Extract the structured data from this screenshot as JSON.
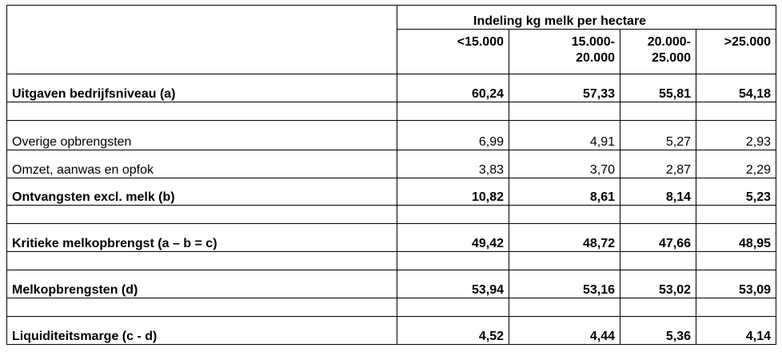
{
  "header": {
    "group_title": "Indeling kg melk per hectare",
    "columns": [
      "<15.000",
      "15.000-\n20.000",
      "20.000-\n25.000",
      ">25.000"
    ]
  },
  "table": {
    "rows": [
      [
        "Uitgaven bedrijfsniveau (a)",
        "60,24",
        "57,33",
        "55,81",
        "54,18"
      ],
      [
        "Overige opbrengsten",
        "6,99",
        "4,91",
        "5,27",
        "2,93"
      ],
      [
        "Omzet, aanwas en opfok",
        "3,83",
        "3,70",
        "2,87",
        "2,29"
      ],
      [
        "Ontvangsten excl. melk (b)",
        "10,82",
        "8,61",
        "8,14",
        "5,23"
      ],
      [
        "Kritieke melkopbrengst (a – b = c)",
        "49,42",
        "48,72",
        "47,66",
        "48,95"
      ],
      [
        "Melkopbrengsten (d)",
        "53,94",
        "53,16",
        "53,02",
        "53,09"
      ],
      [
        "Liquiditeitsmarge (c - d)",
        "4,52",
        "4,44",
        "5,36",
        "4,14"
      ]
    ]
  }
}
